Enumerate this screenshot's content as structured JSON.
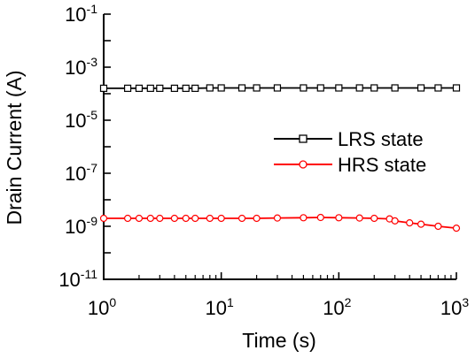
{
  "chart_data": {
    "type": "scatter",
    "title": "",
    "xlabel": "Time (s)",
    "ylabel": "Drain Current (A)",
    "x_scale": "log",
    "y_scale": "log",
    "xlim": [
      1,
      1000
    ],
    "ylim": [
      1e-11,
      0.1
    ],
    "x_ticks": [
      {
        "base": "10",
        "exp": "0"
      },
      {
        "base": "10",
        "exp": "1"
      },
      {
        "base": "10",
        "exp": "2"
      },
      {
        "base": "10",
        "exp": "3"
      }
    ],
    "y_ticks": [
      {
        "base": "10",
        "exp": "-11"
      },
      {
        "base": "10",
        "exp": "-9"
      },
      {
        "base": "10",
        "exp": "-7"
      },
      {
        "base": "10",
        "exp": "-5"
      },
      {
        "base": "10",
        "exp": "-3"
      },
      {
        "base": "10",
        "exp": "-1"
      }
    ],
    "grid": false,
    "legend_position": "right-middle",
    "series": [
      {
        "name": "LRS state",
        "color": "#000000",
        "marker": "square-open",
        "x": [
          1,
          1.6,
          2,
          2.5,
          3,
          4,
          5,
          6,
          8,
          10,
          15,
          20,
          30,
          50,
          70,
          100,
          150,
          200,
          300,
          500,
          700,
          1000
        ],
        "y": [
          0.00016,
          0.00016,
          0.00016,
          0.00016,
          0.00016,
          0.00016,
          0.00016,
          0.00016,
          0.000165,
          0.000165,
          0.000165,
          0.000165,
          0.000165,
          0.000165,
          0.000165,
          0.000165,
          0.000165,
          0.000165,
          0.000165,
          0.000165,
          0.000165,
          0.000165
        ]
      },
      {
        "name": "HRS state",
        "color": "#ff0000",
        "marker": "circle-open",
        "x": [
          1,
          1.6,
          2,
          2.5,
          3,
          4,
          5,
          6,
          8,
          10,
          15,
          20,
          30,
          50,
          70,
          100,
          150,
          200,
          270,
          300,
          400,
          500,
          700,
          1000
        ],
        "y": [
          2e-09,
          2e-09,
          2e-09,
          2e-09,
          2e-09,
          2e-09,
          2e-09,
          2e-09,
          2e-09,
          2e-09,
          2e-09,
          2e-09,
          2.05e-09,
          2.1e-09,
          2.15e-09,
          2.1e-09,
          2.05e-09,
          2e-09,
          1.9e-09,
          1.6e-09,
          1.35e-09,
          1.2e-09,
          1e-09,
          8.5e-10
        ]
      }
    ]
  }
}
